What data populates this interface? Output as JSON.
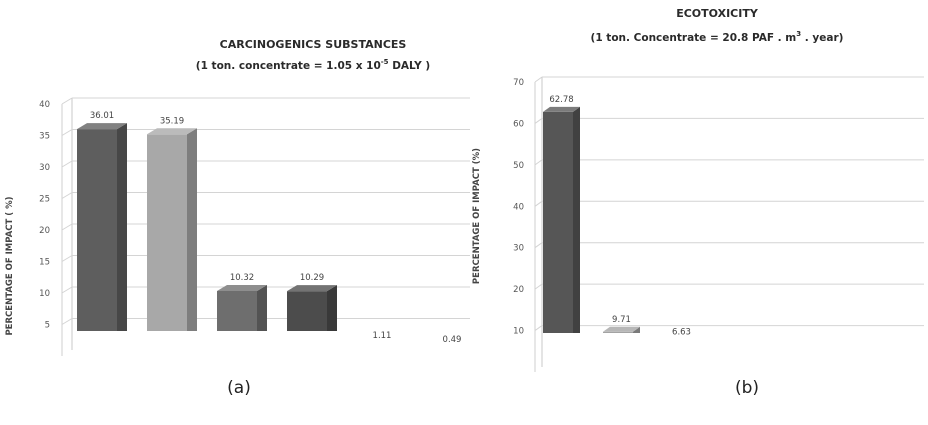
{
  "chart_data": [
    {
      "type": "bar",
      "title": "CARCINOGENICS SUBSTANCES",
      "subtitle_prefix": "(1 ton. concentrate = 1.05 x 10",
      "subtitle_exp": "-5",
      "subtitle_suffix": " DALY )",
      "ylabel": "PERCENTAGE OF IMPACT ( %)",
      "ylim": [
        0,
        40
      ],
      "yticks": [
        "5",
        "10",
        "15",
        "20",
        "25",
        "30",
        "35",
        "40"
      ],
      "values": [
        36.01,
        35.19,
        10.32,
        10.29,
        1.11,
        0.49
      ],
      "value_labels": [
        "36.01",
        "35.19",
        "10.32",
        "10.29",
        "1.11",
        "0.49"
      ],
      "colors": [
        "#5e5e5e",
        "#a8a8a8",
        "#6e6e6e",
        "#4c4c4c",
        "#7a7a7a",
        "#8c8c8c"
      ],
      "grid": true,
      "caption": "(a)"
    },
    {
      "type": "bar",
      "title": "ECOTOXICITY",
      "subtitle_prefix": "(1 ton. Concentrate = 20.8 PAF . m",
      "subtitle_exp": "3",
      "subtitle_suffix": " . year)",
      "ylabel": "PERCENTAGE OF IMPACT (%)",
      "ylim": [
        0,
        70
      ],
      "yticks": [
        "10",
        "20",
        "30",
        "40",
        "50",
        "60",
        "70"
      ],
      "values": [
        62.78,
        9.71,
        6.63
      ],
      "value_labels": [
        "62.78",
        "9.71",
        "6.63"
      ],
      "colors": [
        "#565656",
        "#a3a3a3",
        "#7c7c7c"
      ],
      "grid": true,
      "caption": "(b)"
    }
  ]
}
